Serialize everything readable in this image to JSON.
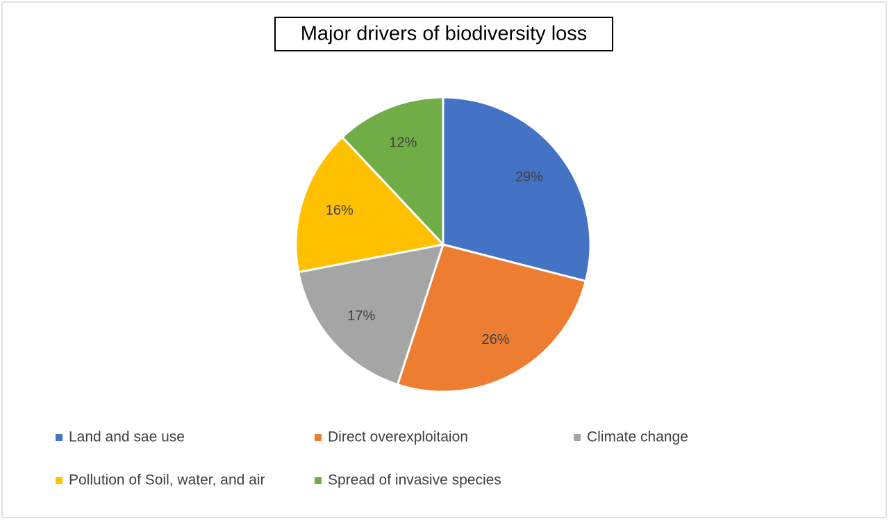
{
  "chart_data": {
    "type": "pie",
    "title": "Major drivers of biodiversity loss",
    "categories": [
      "Land and sae use",
      "Direct overexploitaion",
      "Climate change",
      "Pollution of Soil, water, and air",
      "Spread of invasive species"
    ],
    "values": [
      29,
      26,
      17,
      16,
      12
    ],
    "value_labels": [
      "29%",
      "26%",
      "17%",
      "16%",
      "12%"
    ],
    "colors": [
      "#4472c4",
      "#ed7d31",
      "#a5a5a5",
      "#ffc000",
      "#70ad47"
    ],
    "legend": "bottom"
  }
}
